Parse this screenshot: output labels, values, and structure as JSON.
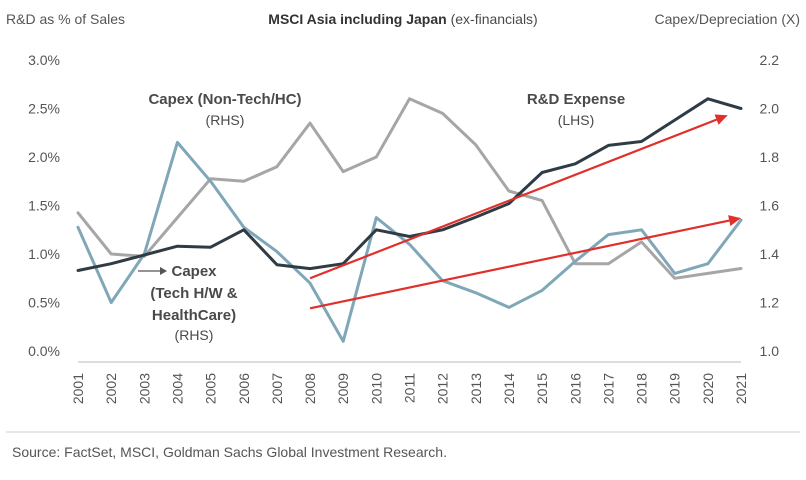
{
  "chart_data": {
    "type": "line",
    "title_bold": "MSCI Asia including Japan",
    "title_rest": " (ex-financials)",
    "left_axis_title": "R&D as % of Sales",
    "right_axis_title": "Capex/Depreciation (X)",
    "source": "Source: FactSet, MSCI, Goldman Sachs Global Investment Research.",
    "x": [
      "2001",
      "2002",
      "2003",
      "2004",
      "2005",
      "2006",
      "2007",
      "2008",
      "2009",
      "2010",
      "2011",
      "2012",
      "2013",
      "2014",
      "2015",
      "2016",
      "2017",
      "2018",
      "2019",
      "2020",
      "2021"
    ],
    "left_axis": {
      "min": 0.0,
      "max": 3.0,
      "ticks": [
        "0.0%",
        "0.5%",
        "1.0%",
        "1.5%",
        "2.0%",
        "2.5%",
        "3.0%"
      ]
    },
    "right_axis": {
      "min": 1.0,
      "max": 2.2,
      "ticks": [
        "1.0",
        "1.2",
        "1.4",
        "1.6",
        "1.8",
        "2.0",
        "2.2"
      ]
    },
    "series": [
      {
        "key": "rd",
        "axis": "left",
        "color": "#2f3b45",
        "label_title": "R&D Expense",
        "label_sub": "(LHS)",
        "values": [
          0.83,
          0.9,
          0.99,
          1.08,
          1.07,
          1.25,
          0.89,
          0.85,
          0.9,
          1.25,
          1.18,
          1.25,
          1.38,
          1.52,
          1.84,
          1.93,
          2.12,
          2.16,
          2.38,
          2.6,
          2.5
        ]
      },
      {
        "key": "capex_nontech",
        "axis": "right",
        "color": "#a6a6a6",
        "label_title": "Capex (Non-Tech/HC)",
        "label_sub": "(RHS)",
        "values": [
          1.57,
          1.4,
          1.39,
          1.55,
          1.71,
          1.7,
          1.76,
          1.94,
          1.74,
          1.8,
          2.04,
          1.98,
          1.85,
          1.66,
          1.62,
          1.36,
          1.36,
          1.45,
          1.3,
          1.32,
          1.34
        ]
      },
      {
        "key": "capex_tech",
        "axis": "right",
        "color": "#7fa7b8",
        "label_lines": [
          "Capex",
          "(Tech H/W &",
          "HealthCare)"
        ],
        "label_sub": "(RHS)",
        "values": [
          1.51,
          1.2,
          1.4,
          1.86,
          1.7,
          1.51,
          1.41,
          1.28,
          1.04,
          1.55,
          1.44,
          1.29,
          1.24,
          1.18,
          1.25,
          1.37,
          1.48,
          1.5,
          1.32,
          1.36,
          1.54
        ]
      }
    ],
    "trend_arrows": [
      {
        "axis": "left",
        "from": {
          "x": "2008",
          "y": 0.75
        },
        "to": {
          "x": "2020.6",
          "y": 2.43
        },
        "color": "#e0302b"
      },
      {
        "axis": "left",
        "from": {
          "x": "2008",
          "y": 0.44
        },
        "to": {
          "x": "2021",
          "y": 1.37
        },
        "color": "#e0302b"
      }
    ]
  }
}
